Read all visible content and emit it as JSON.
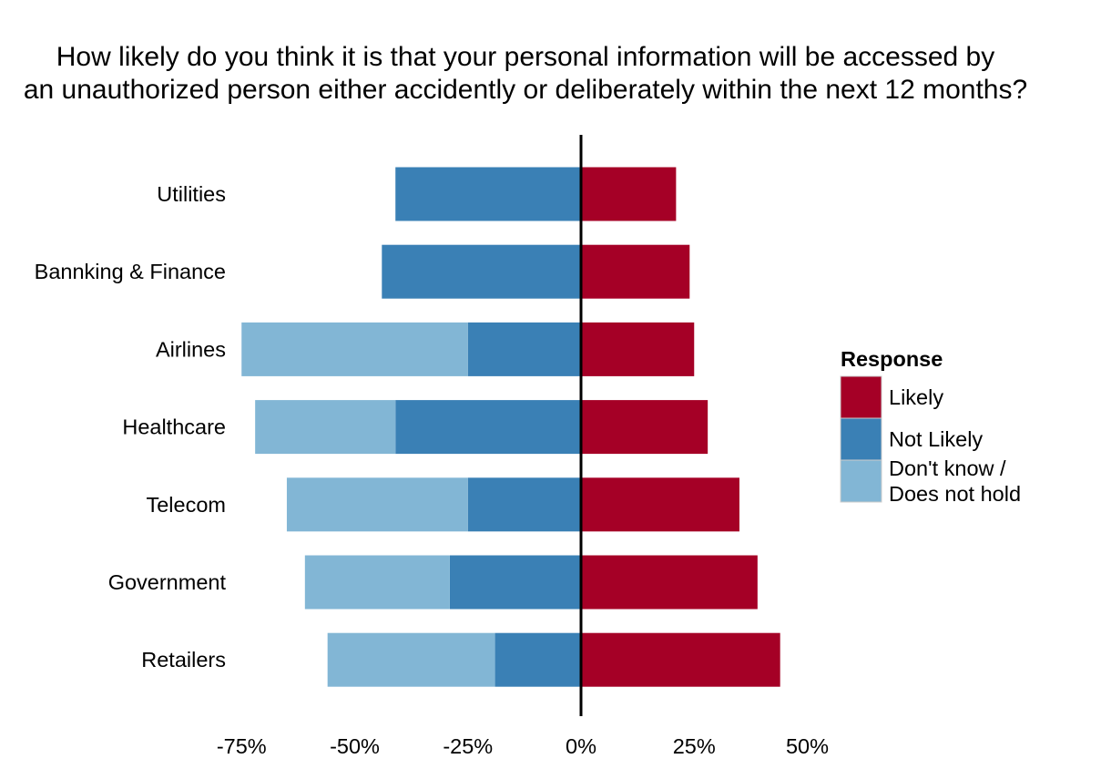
{
  "chart_data": {
    "type": "bar",
    "orientation": "horizontal-diverging",
    "title": "How likely do you think it is that your personal information will be accessed by an unauthorized person either accidently or deliberately within the next 12 months?",
    "title_lines": [
      "How likely do you think it is that your personal information will be accessed by",
      "an unauthorized person either accidently or deliberately within the next 12 months?"
    ],
    "xlabel": "",
    "ylabel": "",
    "xlim": [
      -75,
      50
    ],
    "x_ticks": [
      -75,
      -50,
      -25,
      0,
      25,
      50
    ],
    "x_tick_labels": [
      "-75%",
      "-50%",
      "-25%",
      "0%",
      "25%",
      "50%"
    ],
    "grid": false,
    "legend_position": "right",
    "categories": [
      "Utilities",
      "Bannking & Finance",
      "Airlines",
      "Healthcare",
      "Telecom",
      "Government",
      "Retailers"
    ],
    "series": [
      {
        "name": "Likely",
        "color": "#A50026",
        "direction": "positive",
        "values": [
          21,
          24,
          25,
          28,
          35,
          39,
          44
        ]
      },
      {
        "name": "Not Likely",
        "color": "#3A80B5",
        "direction": "negative",
        "values": [
          41,
          44,
          25,
          41,
          25,
          29,
          19
        ]
      },
      {
        "name": "Don't know / Does not hold",
        "color": "#82B6D5",
        "direction": "negative",
        "values": [
          0,
          0,
          50,
          31,
          40,
          32,
          37
        ]
      }
    ],
    "legend": {
      "title": "Response",
      "entries": [
        {
          "lines": [
            "Likely"
          ],
          "color": "#A50026"
        },
        {
          "lines": [
            "Not Likely"
          ],
          "color": "#3A80B5"
        },
        {
          "lines": [
            "Don't know /",
            "Does not hold"
          ],
          "color": "#82B6D5"
        }
      ]
    }
  }
}
